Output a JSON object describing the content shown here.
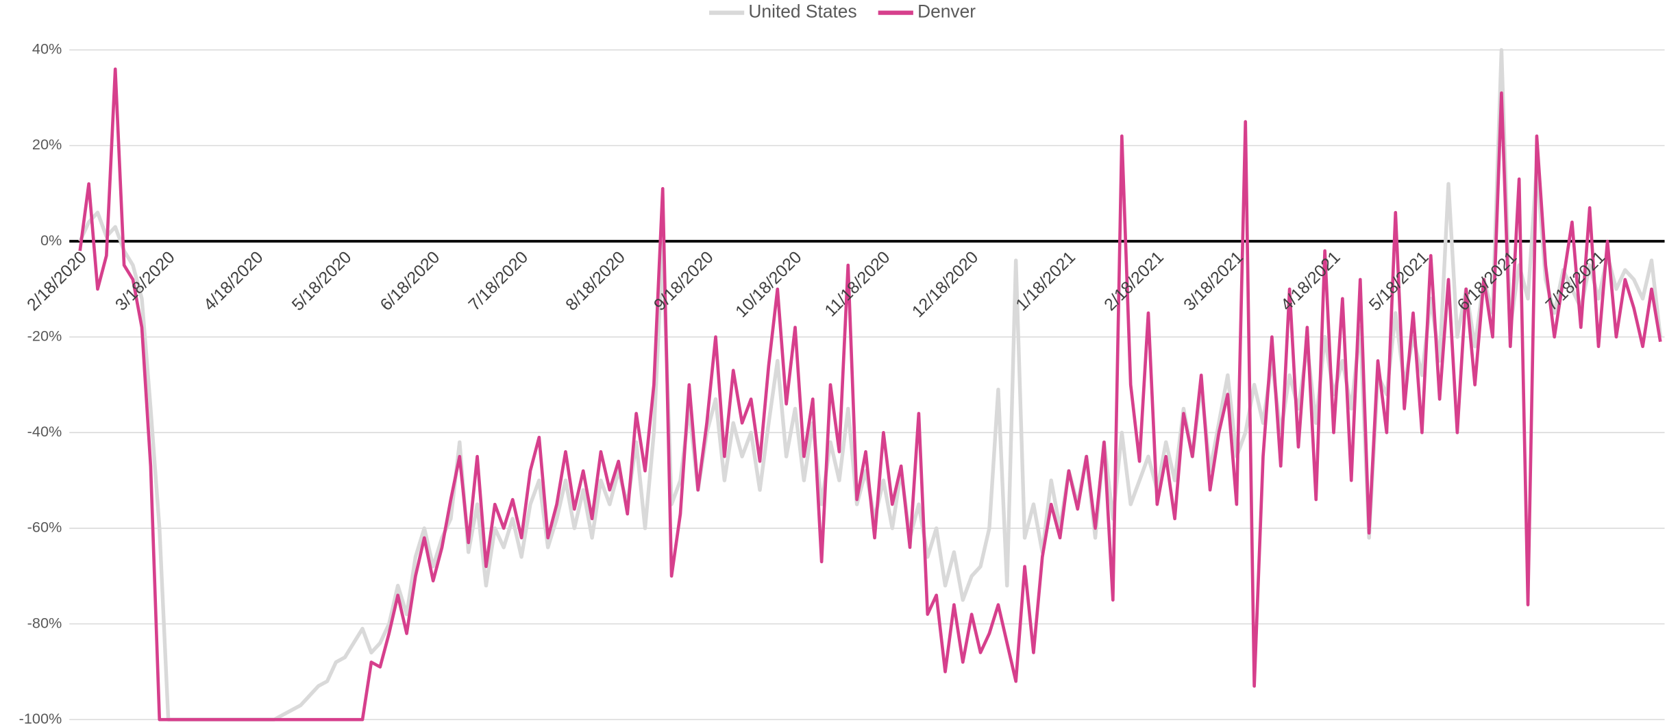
{
  "chart_data": {
    "type": "line",
    "categories": [
      "2/18/2020",
      null,
      null,
      null,
      null,
      null,
      null,
      null,
      null,
      null,
      "3/18/2020",
      null,
      null,
      null,
      null,
      null,
      null,
      null,
      null,
      null,
      "4/18/2020",
      null,
      null,
      null,
      null,
      null,
      null,
      null,
      null,
      null,
      "5/18/2020",
      null,
      null,
      null,
      null,
      null,
      null,
      null,
      null,
      null,
      "6/18/2020",
      null,
      null,
      null,
      null,
      null,
      null,
      null,
      null,
      null,
      "7/18/2020",
      null,
      null,
      null,
      null,
      null,
      null,
      null,
      null,
      null,
      null,
      "8/18/2020",
      null,
      null,
      null,
      null,
      null,
      null,
      null,
      null,
      null,
      "9/18/2020",
      null,
      null,
      null,
      null,
      null,
      null,
      null,
      null,
      null,
      "10/18/2020",
      null,
      null,
      null,
      null,
      null,
      null,
      null,
      null,
      null,
      "11/18/2020",
      null,
      null,
      null,
      null,
      null,
      null,
      null,
      null,
      null,
      "12/18/2020",
      null,
      null,
      null,
      null,
      null,
      null,
      null,
      null,
      null,
      null,
      "1/18/2021",
      null,
      null,
      null,
      null,
      null,
      null,
      null,
      null,
      null,
      "2/18/2021",
      null,
      null,
      null,
      null,
      null,
      null,
      null,
      null,
      "3/18/2021",
      null,
      null,
      null,
      null,
      null,
      null,
      null,
      null,
      null,
      null,
      "4/18/2021",
      null,
      null,
      null,
      null,
      null,
      null,
      null,
      null,
      null,
      "5/18/2021",
      null,
      null,
      null,
      null,
      null,
      null,
      null,
      null,
      null,
      "6/18/2021",
      null,
      null,
      null,
      null,
      null,
      null,
      null,
      null,
      null,
      "7/18/2021",
      null,
      null,
      null,
      null,
      null,
      null,
      null
    ],
    "series": [
      {
        "name": "United States",
        "color": "#d9d9d9",
        "values": [
          0,
          4,
          6,
          1,
          3,
          -2,
          -5,
          -12,
          -35,
          -60,
          -100,
          -100,
          -100,
          -100,
          -100,
          -100,
          -100,
          -100,
          -100,
          -100,
          -100,
          -100,
          -100,
          -99,
          -98,
          -97,
          -95,
          -93,
          -92,
          -88,
          -87,
          -84,
          -81,
          -86,
          -84,
          -80,
          -72,
          -78,
          -66,
          -60,
          -68,
          -62,
          -58,
          -42,
          -65,
          -55,
          -72,
          -60,
          -64,
          -58,
          -66,
          -55,
          -50,
          -64,
          -58,
          -50,
          -60,
          -52,
          -62,
          -50,
          -55,
          -48,
          -55,
          -42,
          -60,
          -40,
          0,
          -55,
          -50,
          -35,
          -52,
          -40,
          -33,
          -50,
          -38,
          -45,
          -40,
          -52,
          -38,
          -25,
          -45,
          -35,
          -50,
          -38,
          -55,
          -42,
          -50,
          -35,
          -55,
          -48,
          -58,
          -50,
          -60,
          -48,
          -62,
          -55,
          -66,
          -60,
          -72,
          -65,
          -75,
          -70,
          -68,
          -60,
          -31,
          -72,
          -4,
          -62,
          -55,
          -65,
          -50,
          -60,
          -48,
          -55,
          -45,
          -62,
          -42,
          -58,
          -40,
          -55,
          -50,
          -45,
          -52,
          -42,
          -50,
          -35,
          -45,
          -30,
          -48,
          -38,
          -28,
          -45,
          -40,
          -30,
          -38,
          -25,
          -40,
          -28,
          -35,
          -22,
          -38,
          -20,
          -32,
          -25,
          -35,
          -18,
          -62,
          -28,
          -32,
          -15,
          -30,
          -20,
          -28,
          -12,
          -25,
          12,
          -20,
          -10,
          -22,
          -8,
          -15,
          40,
          -18,
          -5,
          -12,
          16,
          -8,
          -15,
          -6,
          -10,
          -14,
          -5,
          -12,
          -3,
          -10,
          -6,
          -8,
          -12,
          -4,
          -20
        ]
      },
      {
        "name": "Denver",
        "color": "#d63f8c",
        "values": [
          -2,
          12,
          -10,
          -3,
          36,
          -5,
          -8,
          -18,
          -47,
          -100,
          -100,
          -100,
          -100,
          -100,
          -100,
          -100,
          -100,
          -100,
          -100,
          -100,
          -100,
          -100,
          -100,
          -100,
          -100,
          -100,
          -100,
          -100,
          -100,
          -100,
          -100,
          -100,
          -100,
          -88,
          -89,
          -82,
          -74,
          -82,
          -70,
          -62,
          -71,
          -64,
          -54,
          -45,
          -63,
          -45,
          -68,
          -55,
          -60,
          -54,
          -62,
          -48,
          -41,
          -62,
          -55,
          -44,
          -56,
          -48,
          -58,
          -44,
          -52,
          -46,
          -57,
          -36,
          -48,
          -30,
          11,
          -70,
          -57,
          -30,
          -52,
          -38,
          -20,
          -45,
          -27,
          -38,
          -33,
          -46,
          -26,
          -10,
          -34,
          -18,
          -45,
          -33,
          -67,
          -30,
          -44,
          -5,
          -54,
          -44,
          -62,
          -40,
          -55,
          -47,
          -64,
          -36,
          -78,
          -74,
          -90,
          -76,
          -88,
          -78,
          -86,
          -82,
          -76,
          -84,
          -92,
          -68,
          -86,
          -66,
          -55,
          -62,
          -48,
          -56,
          -45,
          -60,
          -42,
          -75,
          22,
          -30,
          -46,
          -15,
          -55,
          -45,
          -58,
          -36,
          -45,
          -28,
          -52,
          -40,
          -32,
          -55,
          25,
          -93,
          -45,
          -20,
          -47,
          -10,
          -43,
          -18,
          -54,
          -2,
          -40,
          -12,
          -50,
          -8,
          -61,
          -25,
          -40,
          6,
          -35,
          -15,
          -40,
          -3,
          -33,
          -8,
          -40,
          -10,
          -30,
          -8,
          -20,
          31,
          -22,
          13,
          -76,
          22,
          -5,
          -20,
          -8,
          4,
          -18,
          7,
          -22,
          0,
          -20,
          -8,
          -14,
          -22,
          -10,
          -21
        ]
      }
    ],
    "ylim": [
      -100,
      40
    ],
    "yticks": [
      {
        "value": -100,
        "label": "-100%"
      },
      {
        "value": -80,
        "label": "-80%"
      },
      {
        "value": -60,
        "label": "-60%"
      },
      {
        "value": -40,
        "label": "-40%"
      },
      {
        "value": -20,
        "label": "-20%"
      },
      {
        "value": 0,
        "label": "0%"
      },
      {
        "value": 20,
        "label": "20%"
      },
      {
        "value": 40,
        "label": "40%"
      }
    ],
    "grid": true,
    "legend": "top"
  }
}
